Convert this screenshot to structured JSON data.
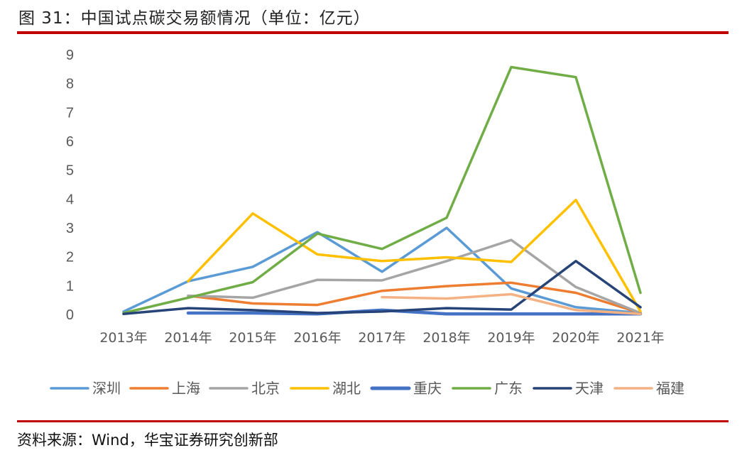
{
  "header": {
    "title": "图 31：中国试点碳交易额情况（单位：亿元）"
  },
  "footer": {
    "source": "资料来源：Wind，华宝证券研究创新部"
  },
  "chart_data": {
    "type": "line",
    "categories": [
      "2013年",
      "2014年",
      "2015年",
      "2016年",
      "2017年",
      "2018年",
      "2019年",
      "2020年",
      "2021年"
    ],
    "y_ticks": [
      "0",
      "1",
      "2",
      "3",
      "4",
      "5",
      "6",
      "7",
      "8",
      "9"
    ],
    "ylim": [
      0,
      9
    ],
    "grid": false,
    "legend_position": "bottom",
    "series": [
      {
        "name": "深圳",
        "color": "#5b9bd5",
        "values": [
          0.1,
          1.15,
          1.65,
          2.85,
          1.48,
          3.0,
          0.9,
          0.25,
          0.05
        ]
      },
      {
        "name": "上海",
        "color": "#ed7d31",
        "values": [
          null,
          0.65,
          0.38,
          0.33,
          0.82,
          0.98,
          1.1,
          0.75,
          0.05
        ]
      },
      {
        "name": "北京",
        "color": "#a5a5a5",
        "values": [
          null,
          0.65,
          0.58,
          1.2,
          1.18,
          1.85,
          2.58,
          0.95,
          0.05
        ]
      },
      {
        "name": "湖北",
        "color": "#ffc000",
        "values": [
          null,
          1.15,
          3.5,
          2.08,
          1.85,
          1.98,
          1.82,
          3.97,
          0.1
        ]
      },
      {
        "name": "重庆",
        "color": "#4472c4",
        "values": [
          null,
          0.05,
          0.05,
          0.02,
          0.15,
          0.02,
          0.02,
          0.02,
          0.02
        ]
      },
      {
        "name": "广东",
        "color": "#70ad47",
        "values": [
          0.05,
          0.58,
          1.12,
          2.8,
          2.27,
          3.35,
          8.57,
          8.22,
          0.75
        ]
      },
      {
        "name": "天津",
        "color": "#264478",
        "values": [
          0.02,
          0.22,
          0.15,
          0.05,
          0.1,
          0.22,
          0.17,
          1.85,
          0.25
        ]
      },
      {
        "name": "福建",
        "color": "#f4b183",
        "values": [
          null,
          null,
          null,
          null,
          0.6,
          0.55,
          0.7,
          0.15,
          0.02
        ]
      }
    ]
  }
}
